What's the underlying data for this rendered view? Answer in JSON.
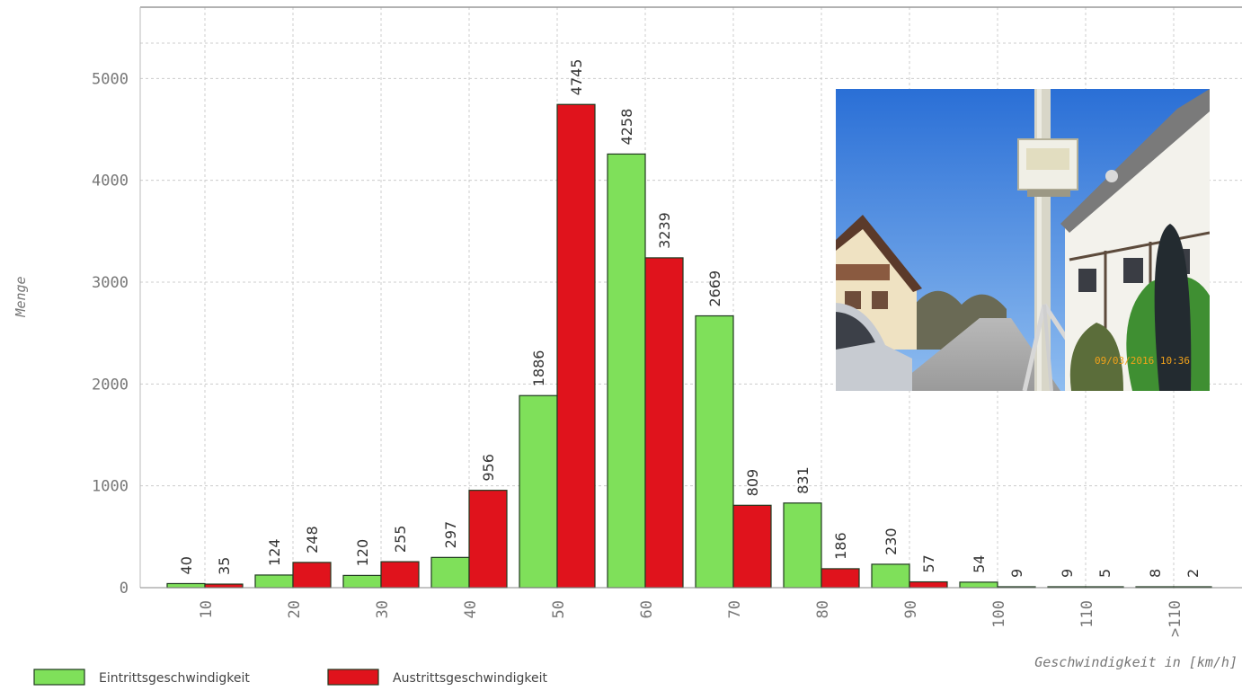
{
  "chart_data": {
    "type": "bar",
    "title": "",
    "xlabel": "Geschwindigkeit in [km/h]",
    "ylabel": "Menge",
    "ylim": [
      0,
      5700
    ],
    "yticks": [
      "0",
      "1000",
      "2000",
      "3000",
      "4000",
      "5000"
    ],
    "grid": true,
    "legend_position": "bottom-left",
    "categories": [
      "10",
      "20",
      "30",
      "40",
      "50",
      "60",
      "70",
      "80",
      "90",
      "100",
      "110",
      ">110"
    ],
    "series": [
      {
        "name": "Eintrittsgeschwindigkeit",
        "color": "#7fe05a",
        "values": [
          40,
          124,
          120,
          297,
          1886,
          4258,
          2669,
          831,
          230,
          54,
          9,
          8
        ],
        "labels": [
          "40",
          "124",
          "120",
          "297",
          "1886",
          "4258",
          "2669",
          "831",
          "230",
          "54",
          "9",
          "8"
        ]
      },
      {
        "name": "Austrittsgeschwindigkeit",
        "color": "#e0131c",
        "values": [
          35,
          248,
          255,
          956,
          4745,
          3239,
          809,
          186,
          57,
          9,
          5,
          2
        ],
        "labels": [
          "35",
          "248",
          "255",
          "956",
          "4745",
          "3239",
          "809",
          "186",
          "57",
          "9",
          "5",
          "2"
        ]
      }
    ]
  },
  "photo": {
    "icon": "street-traffic-counter-photo"
  }
}
